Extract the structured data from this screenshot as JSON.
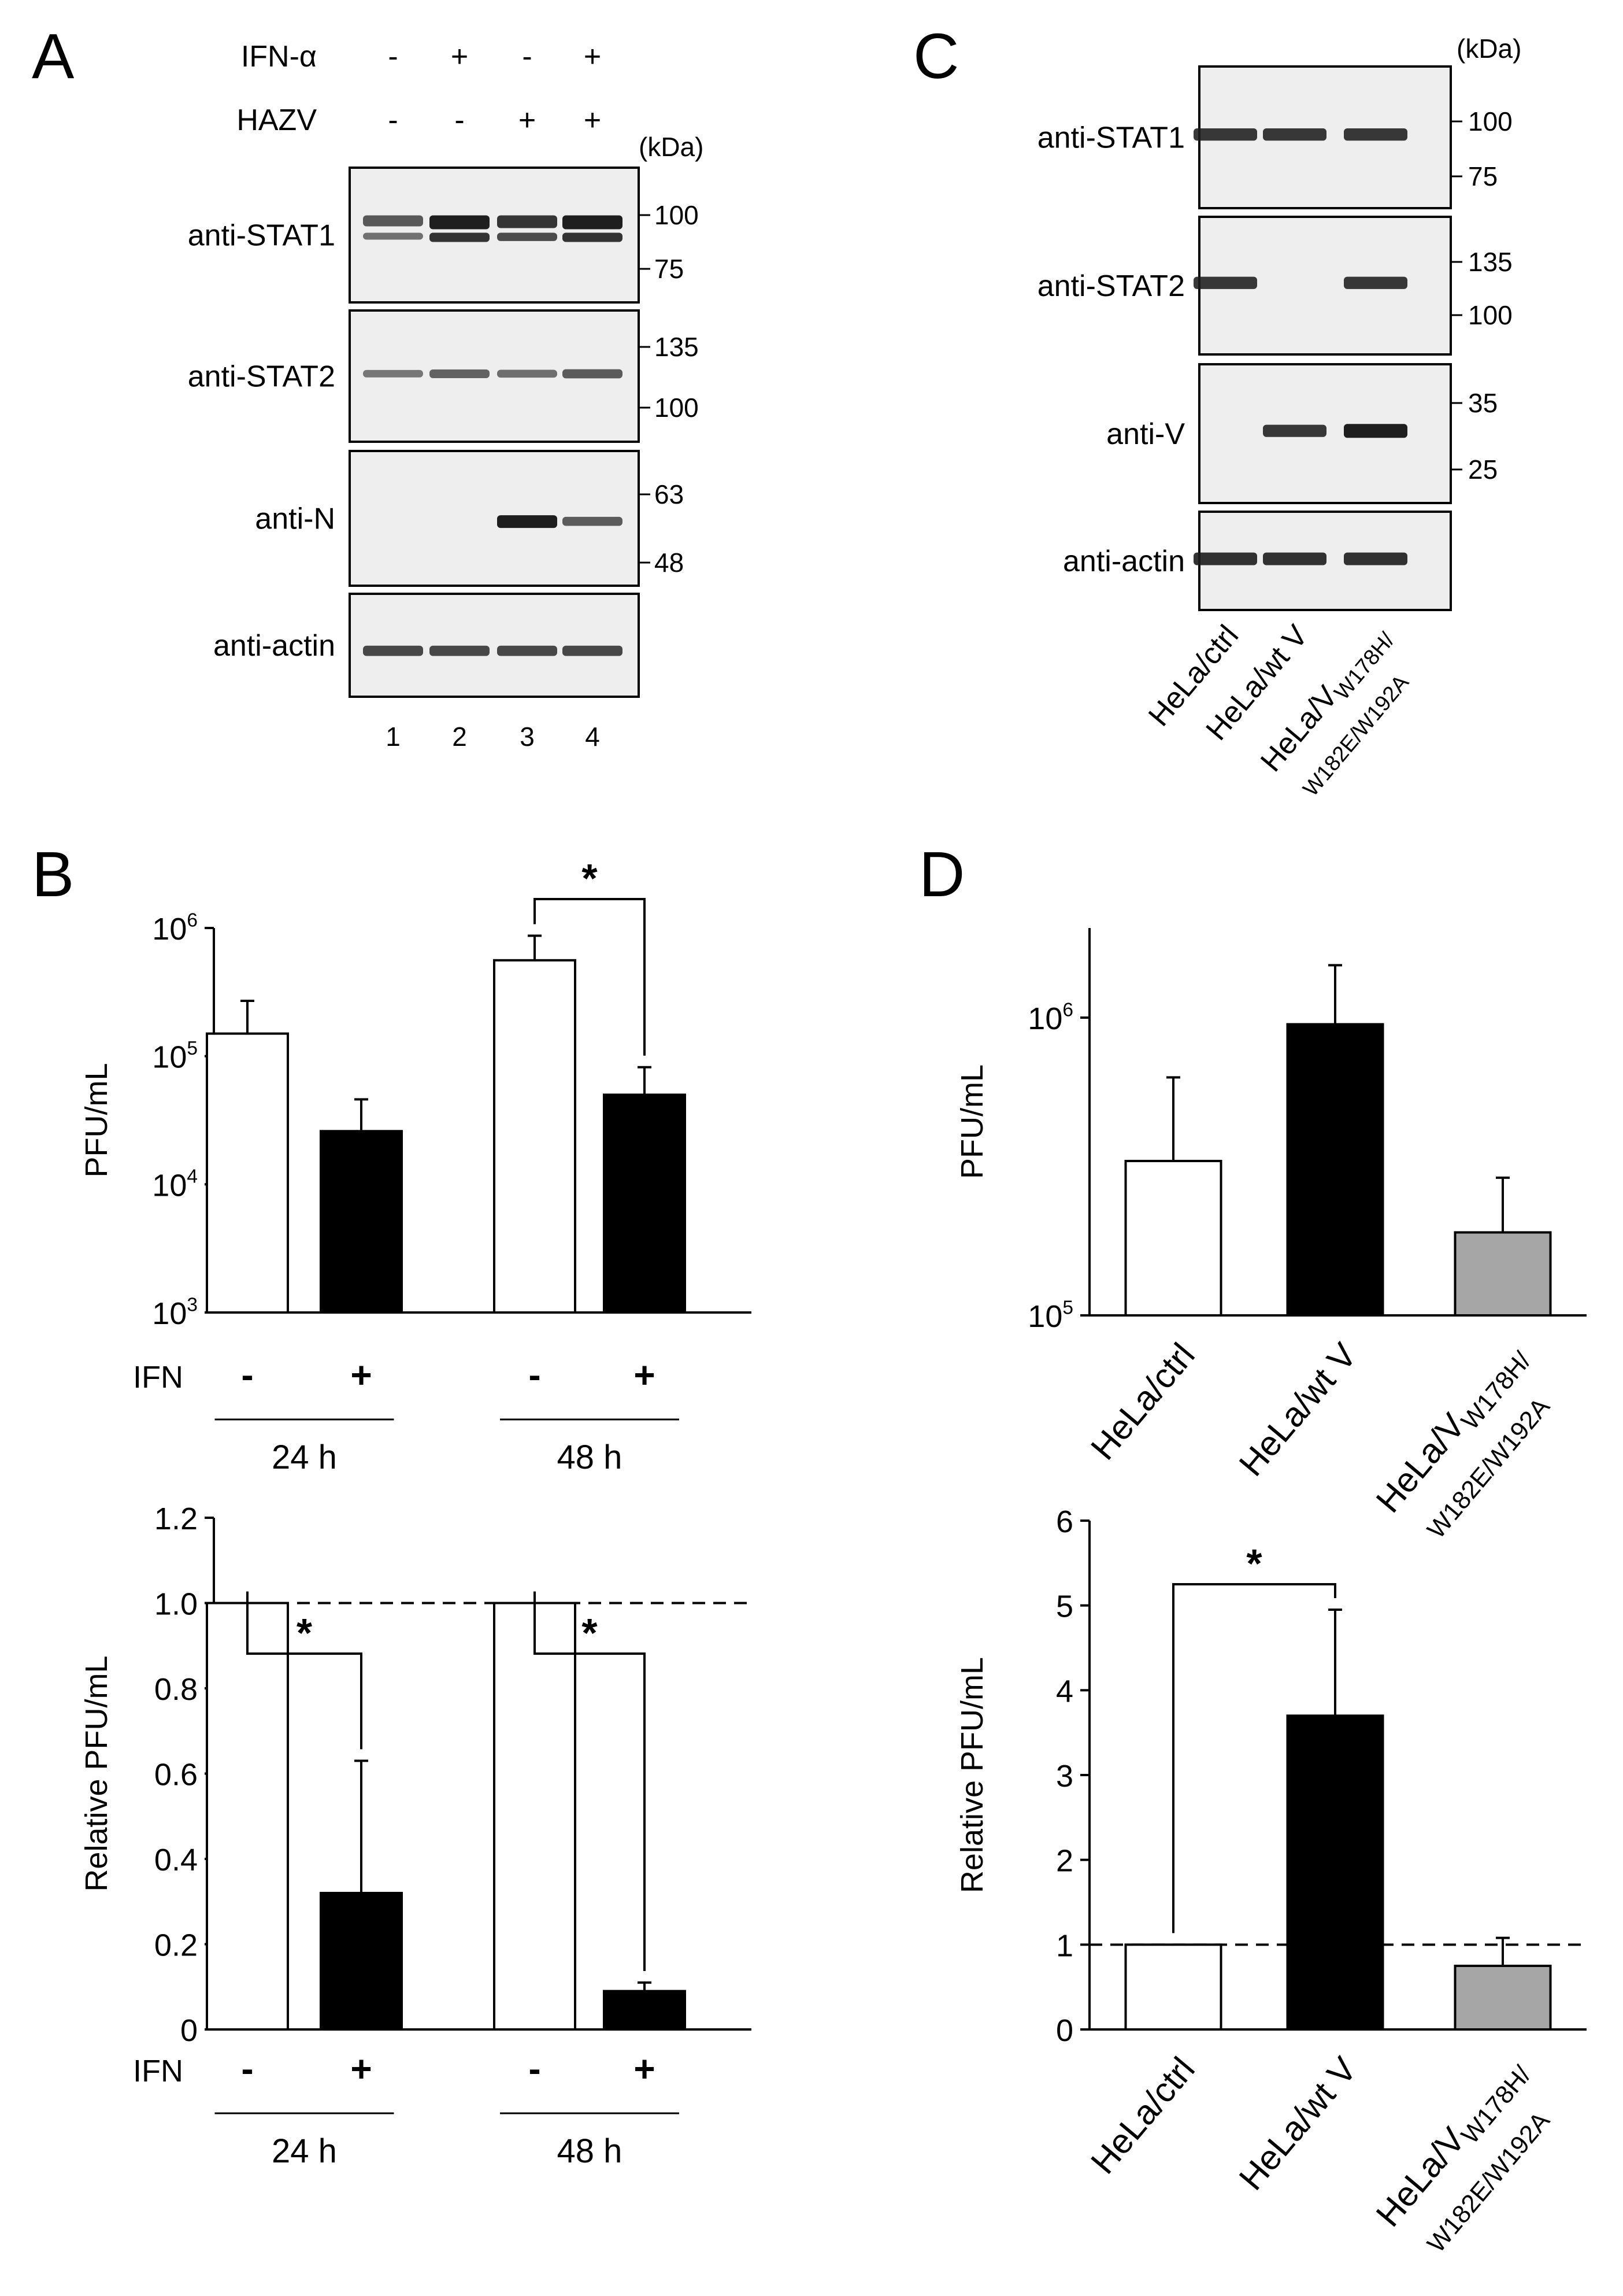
{
  "colors": {
    "white_bar": "#ffffff",
    "black_bar": "#000000",
    "gray_bar": "#a6a6a6",
    "band": "#1e1e1e",
    "blot_bg": "#eeeeee"
  },
  "panels": {
    "A": "A",
    "B": "B",
    "C": "C",
    "D": "D"
  },
  "blotA": {
    "treatments": [
      {
        "name": "IFN-α",
        "signs": [
          "-",
          "+",
          "-",
          "+"
        ]
      },
      {
        "name": "HAZV",
        "signs": [
          "-",
          "-",
          "+",
          "+"
        ]
      }
    ],
    "kda": "(kDa)",
    "lanes": [
      "1",
      "2",
      "3",
      "4"
    ],
    "blots": [
      {
        "label": "anti-STAT1",
        "markers": [
          "100",
          "75"
        ],
        "intensities": [
          0.5,
          1.0,
          0.8,
          1.0
        ]
      },
      {
        "label": "anti-STAT2",
        "markers": [
          "135",
          "100"
        ],
        "intensities": [
          0.35,
          0.5,
          0.4,
          0.55
        ]
      },
      {
        "label": "anti-N",
        "markers": [
          "63",
          "48"
        ],
        "intensities": [
          0.0,
          0.0,
          1.0,
          0.55
        ]
      },
      {
        "label": "anti-actin",
        "markers": [],
        "intensities": [
          0.7,
          0.7,
          0.7,
          0.7
        ]
      }
    ]
  },
  "blotC": {
    "kda": "(kDa)",
    "blots": [
      {
        "label": "anti-STAT1",
        "markers": [
          "100",
          "75"
        ],
        "intensities": [
          0.8,
          0.8,
          0.8
        ]
      },
      {
        "label": "anti-STAT2",
        "markers": [
          "135",
          "100"
        ],
        "intensities": [
          0.8,
          0.0,
          0.8
        ]
      },
      {
        "label": "anti-V",
        "markers": [
          "35",
          "25"
        ],
        "intensities": [
          0.0,
          0.8,
          1.0
        ]
      },
      {
        "label": "anti-actin",
        "markers": [],
        "intensities": [
          0.85,
          0.85,
          0.85
        ]
      }
    ],
    "cell_lines": [
      {
        "main": "HeLa/ctrl",
        "sub1": "",
        "sub2": ""
      },
      {
        "main": "HeLa/wt V",
        "sub1": "",
        "sub2": ""
      },
      {
        "main": "HeLa/V",
        "sub1": "W178H/",
        "sub2": "W182E/W192A"
      }
    ]
  },
  "chart_data": [
    {
      "id": "B-top",
      "type": "bar",
      "scale": "log",
      "ylabel": "PFU/mL",
      "ylim": [
        1000,
        1000000
      ],
      "ytick_labels": [
        {
          "base": "10",
          "exp": "3"
        },
        {
          "base": "10",
          "exp": "4"
        },
        {
          "base": "10",
          "exp": "5"
        },
        {
          "base": "10",
          "exp": "6"
        }
      ],
      "row_label": "IFN",
      "groups": [
        {
          "name": "24 h",
          "signs": [
            "-",
            "+"
          ]
        },
        {
          "name": "48 h",
          "signs": [
            "-",
            "+"
          ]
        }
      ],
      "values": [
        150000,
        26000,
        560000,
        50000
      ],
      "errors": [
        270000,
        46000,
        870000,
        82000
      ],
      "colors": [
        "white",
        "black",
        "white",
        "black"
      ],
      "significance": [
        {
          "from": 2,
          "to": 3,
          "label": "*"
        }
      ]
    },
    {
      "id": "B-bottom",
      "type": "bar",
      "ylabel": "Relative PFU/mL",
      "ylim": [
        0,
        1.2
      ],
      "ytick_labels": [
        "0",
        "0.2",
        "0.4",
        "0.6",
        "0.8",
        "1.0",
        "1.2"
      ],
      "row_label": "IFN",
      "groups": [
        {
          "name": "24 h",
          "signs": [
            "-",
            "+"
          ]
        },
        {
          "name": "48 h",
          "signs": [
            "-",
            "+"
          ]
        }
      ],
      "values": [
        1.0,
        0.32,
        1.0,
        0.09
      ],
      "errors": [
        1.0,
        0.63,
        1.0,
        0.11
      ],
      "colors": [
        "white",
        "black",
        "white",
        "black"
      ],
      "reference_line": 1.0,
      "significance": [
        {
          "from": 0,
          "to": 1,
          "label": "*"
        },
        {
          "from": 2,
          "to": 3,
          "label": "*"
        }
      ]
    },
    {
      "id": "D-top",
      "type": "bar",
      "scale": "log",
      "ylabel": "PFU/mL",
      "ylim": [
        100000,
        2000000
      ],
      "ytick_labels": [
        {
          "base": "10",
          "exp": "5"
        },
        {
          "base": "10",
          "exp": "6"
        }
      ],
      "categories": [
        {
          "main": "HeLa/ctrl",
          "sub1": "",
          "sub2": ""
        },
        {
          "main": "HeLa/wt V",
          "sub1": "",
          "sub2": ""
        },
        {
          "main": "HeLa/V",
          "sub1": "W178H/",
          "sub2": "W182E/W192A"
        }
      ],
      "values": [
        330000,
        950000,
        190000
      ],
      "errors": [
        630000,
        1500000,
        290000
      ],
      "colors": [
        "white",
        "black",
        "gray"
      ]
    },
    {
      "id": "D-bottom",
      "type": "bar",
      "ylabel": "Relative PFU/mL",
      "ylim": [
        0,
        6
      ],
      "ytick_labels": [
        "0",
        "1",
        "2",
        "3",
        "4",
        "5",
        "6"
      ],
      "categories": [
        {
          "main": "HeLa/ctrl",
          "sub1": "",
          "sub2": ""
        },
        {
          "main": "HeLa/wt V",
          "sub1": "",
          "sub2": ""
        },
        {
          "main": "HeLa/V",
          "sub1": "W178H/",
          "sub2": "W182E/W192A"
        }
      ],
      "values": [
        1.0,
        3.7,
        0.75
      ],
      "errors": [
        1.0,
        4.95,
        1.08
      ],
      "colors": [
        "white",
        "black",
        "gray"
      ],
      "reference_line": 1.0,
      "significance": [
        {
          "from": 0,
          "to": 1,
          "label": "*"
        }
      ]
    }
  ]
}
